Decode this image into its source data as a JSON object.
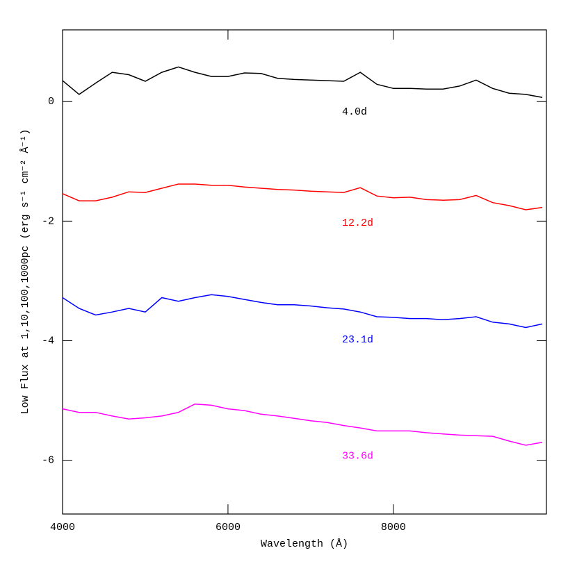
{
  "chart_data": {
    "type": "line",
    "xlabel": "Wavelength (Å)",
    "ylabel": "Low Flux at 1,10,100,1000pc (erg s⁻¹ cm⁻² Å⁻¹)",
    "x": [
      4000,
      4200,
      4400,
      4600,
      4800,
      5000,
      5200,
      5400,
      5600,
      5800,
      6000,
      6200,
      6400,
      6600,
      6800,
      7000,
      7200,
      7400,
      7600,
      7800,
      8000,
      8200,
      8400,
      8600,
      8800,
      9000,
      9200,
      9400,
      9600,
      9800
    ],
    "series": [
      {
        "name": "4.0d",
        "color": "#000000",
        "values": [
          0.35,
          0.12,
          0.31,
          0.49,
          0.45,
          0.34,
          0.49,
          0.58,
          0.49,
          0.42,
          0.42,
          0.48,
          0.47,
          0.39,
          0.37,
          0.36,
          0.35,
          0.34,
          0.49,
          0.29,
          0.22,
          0.22,
          0.21,
          0.21,
          0.26,
          0.36,
          0.22,
          0.14,
          0.12,
          0.07
        ]
      },
      {
        "name": "12.2d",
        "color": "#ff0000",
        "values": [
          -1.54,
          -1.66,
          -1.66,
          -1.6,
          -1.51,
          -1.52,
          -1.45,
          -1.38,
          -1.38,
          -1.4,
          -1.4,
          -1.43,
          -1.45,
          -1.47,
          -1.48,
          -1.5,
          -1.51,
          -1.52,
          -1.44,
          -1.58,
          -1.61,
          -1.6,
          -1.64,
          -1.65,
          -1.64,
          -1.57,
          -1.69,
          -1.74,
          -1.81,
          -1.77
        ]
      },
      {
        "name": "23.1d",
        "color": "#0000ff",
        "values": [
          -3.28,
          -3.46,
          -3.57,
          -3.52,
          -3.46,
          -3.52,
          -3.28,
          -3.34,
          -3.28,
          -3.23,
          -3.26,
          -3.31,
          -3.36,
          -3.4,
          -3.4,
          -3.42,
          -3.45,
          -3.47,
          -3.52,
          -3.6,
          -3.61,
          -3.63,
          -3.63,
          -3.65,
          -3.63,
          -3.6,
          -3.69,
          -3.72,
          -3.78,
          -3.72
        ]
      },
      {
        "name": "33.6d",
        "color": "#ff00ff",
        "values": [
          -5.14,
          -5.2,
          -5.2,
          -5.26,
          -5.31,
          -5.29,
          -5.26,
          -5.2,
          -5.06,
          -5.08,
          -5.14,
          -5.17,
          -5.23,
          -5.26,
          -5.3,
          -5.34,
          -5.37,
          -5.42,
          -5.46,
          -5.51,
          -5.51,
          -5.51,
          -5.54,
          -5.56,
          -5.58,
          -5.59,
          -5.6,
          -5.68,
          -5.75,
          -5.7
        ]
      }
    ],
    "xlim": [
      4000,
      9850
    ],
    "xticks": [
      4000,
      6000,
      8000
    ],
    "ylim": [
      -6.9,
      1.2
    ],
    "yticks": [
      0,
      -2,
      -4,
      -6
    ]
  }
}
